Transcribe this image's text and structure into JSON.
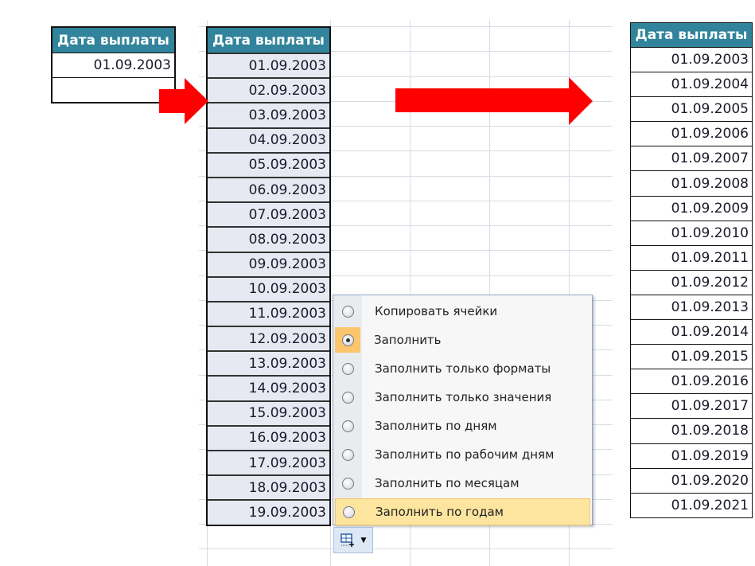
{
  "header": "Дата выплаты",
  "left_table": {
    "header": "Дата выплаты",
    "values": [
      "01.09.2003",
      ""
    ]
  },
  "middle_table": {
    "header": "Дата выплаты",
    "values": [
      "01.09.2003",
      "02.09.2003",
      "03.09.2003",
      "04.09.2003",
      "05.09.2003",
      "06.09.2003",
      "07.09.2003",
      "08.09.2003",
      "09.09.2003",
      "10.09.2003",
      "11.09.2003",
      "12.09.2003",
      "13.09.2003",
      "14.09.2003",
      "15.09.2003",
      "16.09.2003",
      "17.09.2003",
      "18.09.2003",
      "19.09.2003"
    ]
  },
  "right_table": {
    "header": "Дата выплаты",
    "values": [
      "01.09.2003",
      "01.09.2004",
      "01.09.2005",
      "01.09.2006",
      "01.09.2007",
      "01.09.2008",
      "01.09.2009",
      "01.09.2010",
      "01.09.2011",
      "01.09.2012",
      "01.09.2013",
      "01.09.2014",
      "01.09.2015",
      "01.09.2016",
      "01.09.2017",
      "01.09.2018",
      "01.09.2019",
      "01.09.2020",
      "01.09.2021"
    ]
  },
  "autofill_menu": {
    "items": [
      {
        "label": "Копировать ячейки",
        "selected": false
      },
      {
        "label": "Заполнить",
        "selected": true
      },
      {
        "label": "Заполнить только форматы",
        "selected": false
      },
      {
        "label": "Заполнить только значения",
        "selected": false
      },
      {
        "label": "Заполнить по дням",
        "selected": false
      },
      {
        "label": "Заполнить по рабочим дням",
        "selected": false
      },
      {
        "label": "Заполнить по месяцам",
        "selected": false
      },
      {
        "label": "Заполнить по годам",
        "selected": false,
        "highlighted": true
      }
    ]
  },
  "colors": {
    "header_bg": "#31849b",
    "arrow": "#ff0000",
    "menu_highlight": "#fde5a0"
  },
  "icons": {
    "autofill_options": "autofill-options-icon",
    "arrow": "right-arrow-icon"
  }
}
